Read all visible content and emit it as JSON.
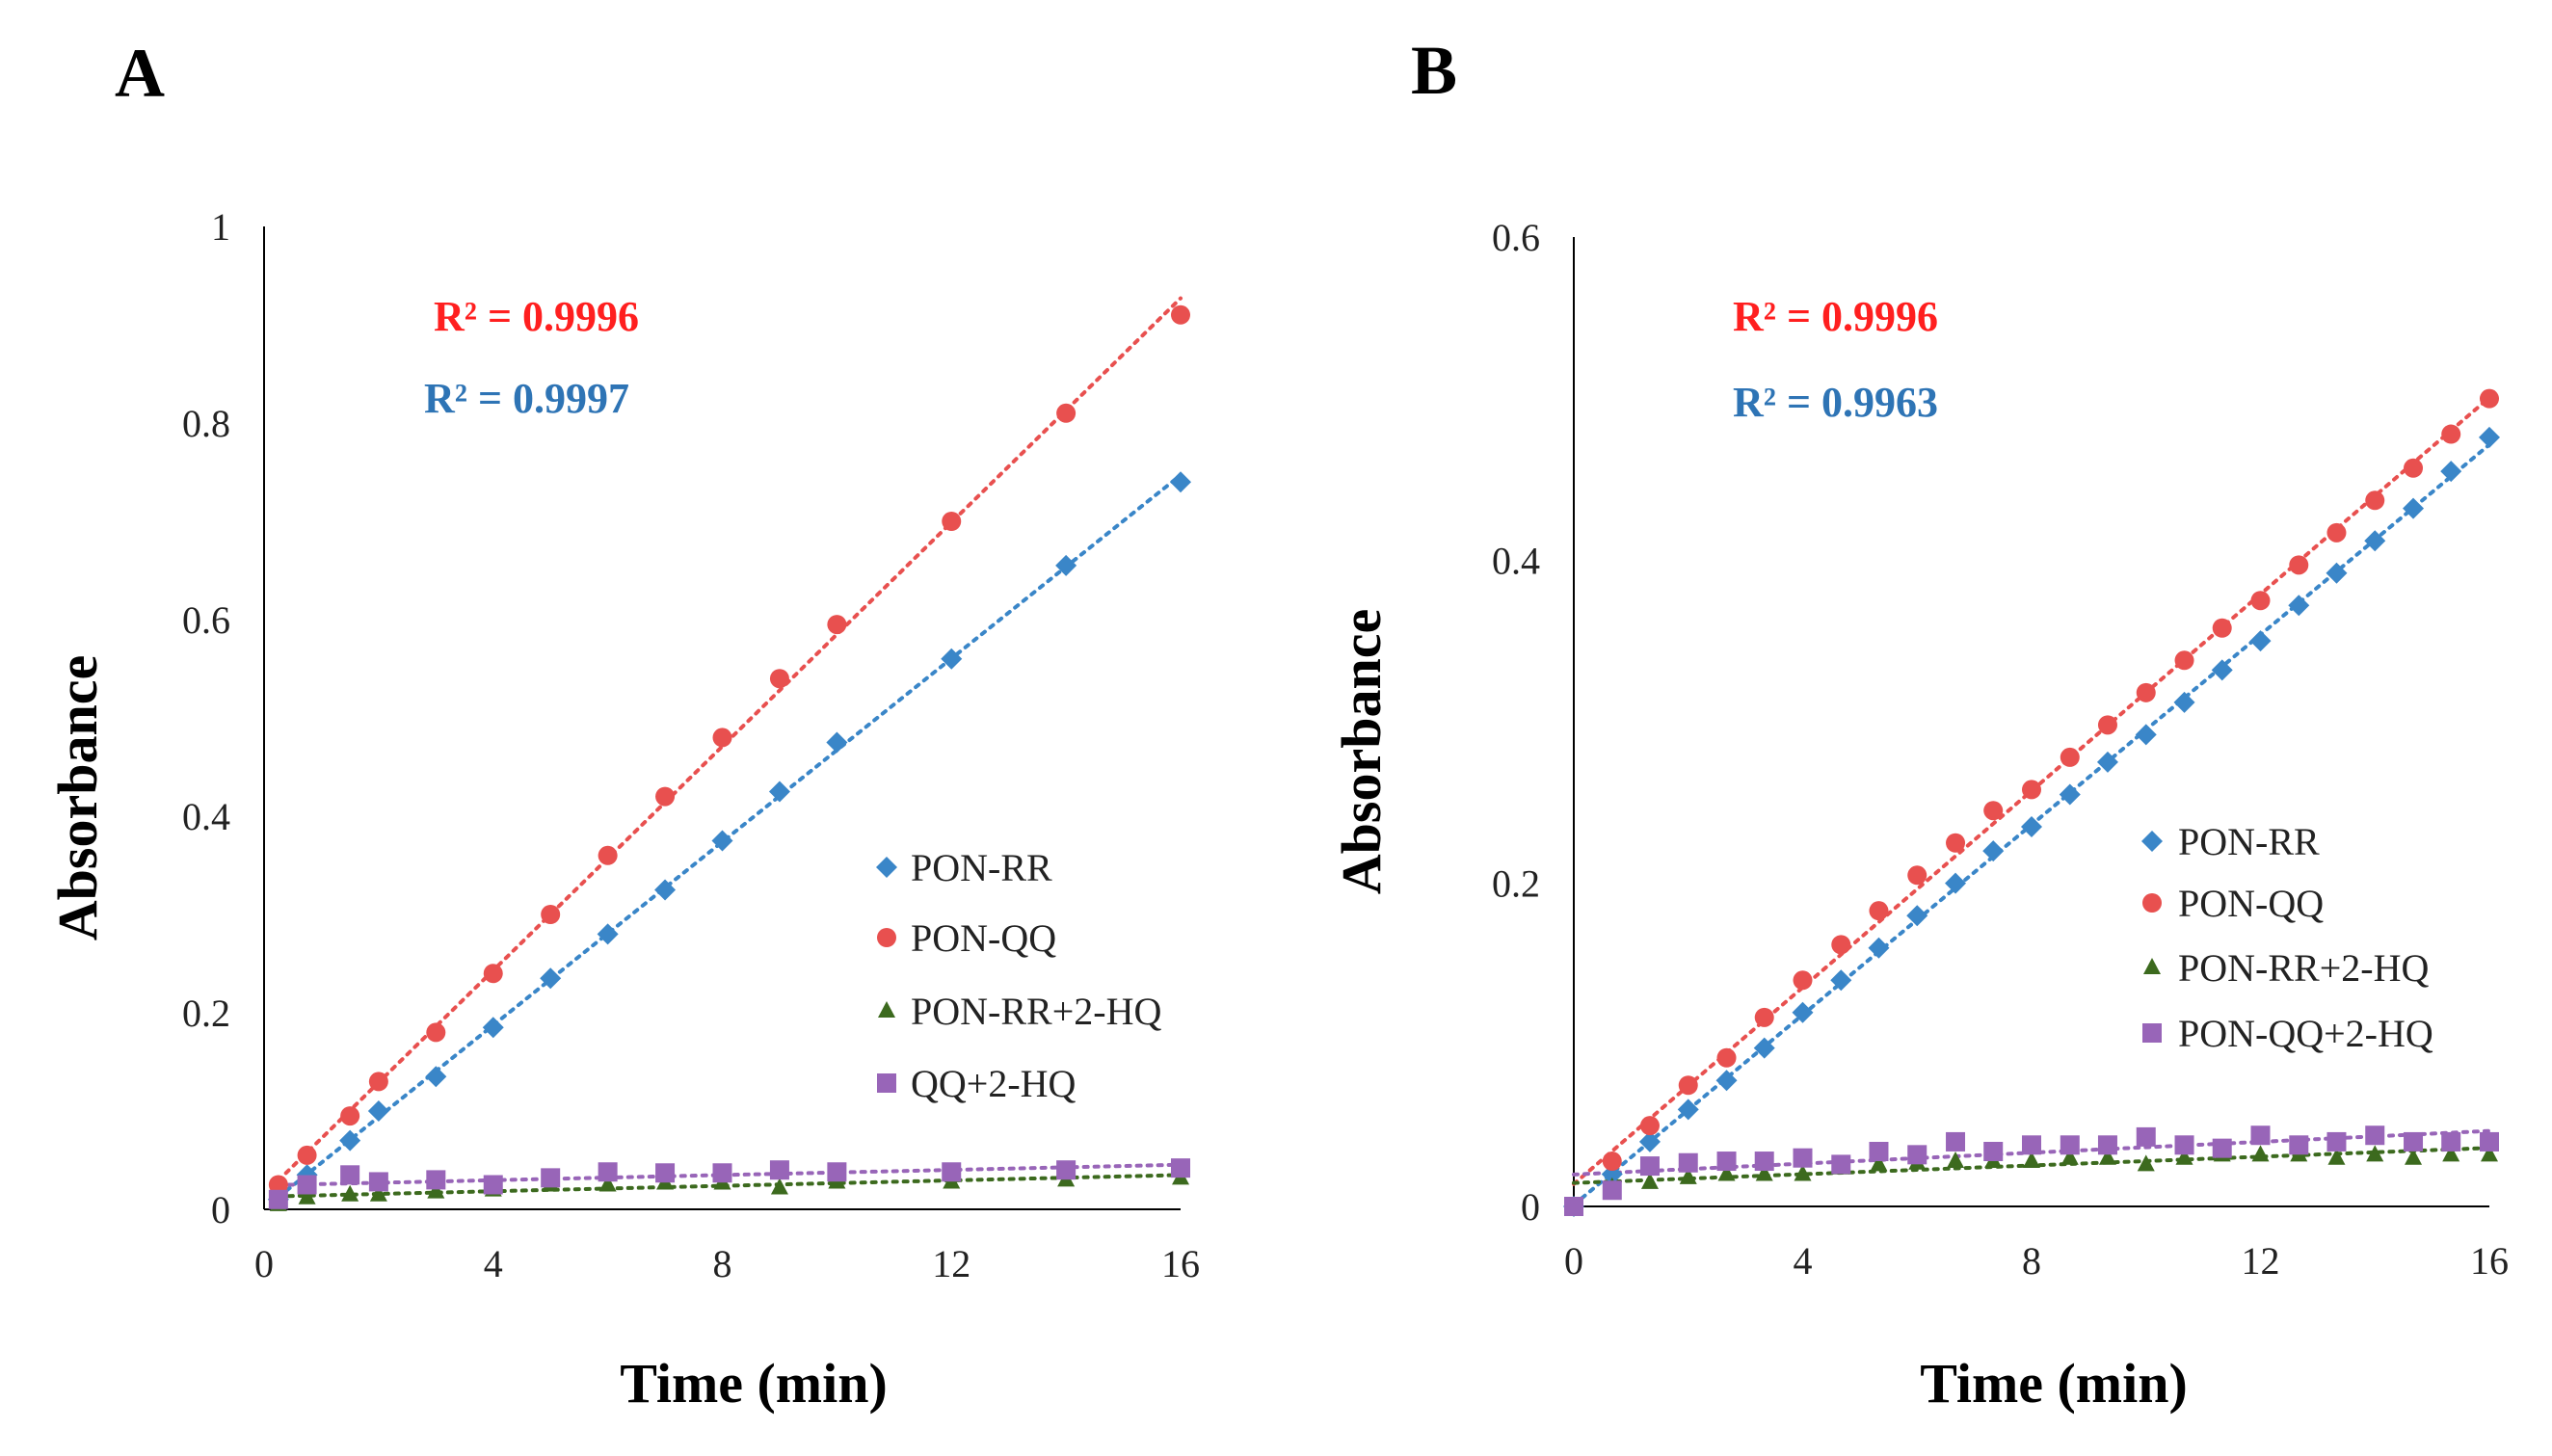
{
  "colors": {
    "blue": "#3a86c8",
    "red": "#e8504f",
    "green": "#3c6a1e",
    "purple": "#9865b8",
    "rblue": "#2e74b5",
    "rred": "#ff1f1f"
  },
  "chart_data": [
    {
      "panel_label": "A",
      "type": "scatter",
      "title": "",
      "xlabel": "Time (min)",
      "ylabel": "Absorbance",
      "xlim": [
        0,
        16
      ],
      "ylim": [
        0,
        1
      ],
      "xticks": [
        "0",
        "4",
        "8",
        "12",
        "16"
      ],
      "yticks": [
        "0",
        "0.2",
        "0.4",
        "0.6",
        "0.8",
        "1"
      ],
      "xtick_values": [
        0,
        4,
        8,
        12,
        16
      ],
      "ytick_values": [
        0,
        0.2,
        0.4,
        0.6,
        0.8,
        1
      ],
      "legend_position": "right-center",
      "r2_labels": [
        {
          "text": "R² = 0.9996",
          "color_key": "rred",
          "series": "PON-QQ"
        },
        {
          "text": "R² = 0.9997",
          "color_key": "rblue",
          "series": "PON-RR"
        }
      ],
      "series": [
        {
          "name": "PON-RR",
          "marker": "diamond",
          "color_key": "blue",
          "trendline": true,
          "x": [
            0.25,
            0.75,
            1.5,
            2,
            3,
            4,
            5,
            6,
            7,
            8,
            9,
            10,
            12,
            14,
            16
          ],
          "y": [
            0.01,
            0.035,
            0.07,
            0.1,
            0.135,
            0.185,
            0.235,
            0.28,
            0.325,
            0.375,
            0.425,
            0.475,
            0.56,
            0.655,
            0.74
          ]
        },
        {
          "name": "PON-QQ",
          "marker": "circle",
          "color_key": "red",
          "trendline": true,
          "x": [
            0.25,
            0.75,
            1.5,
            2,
            3,
            4,
            5,
            6,
            7,
            8,
            9,
            10,
            12,
            14,
            16
          ],
          "y": [
            0.025,
            0.055,
            0.095,
            0.13,
            0.18,
            0.24,
            0.3,
            0.36,
            0.42,
            0.48,
            0.54,
            0.595,
            0.7,
            0.81,
            0.91
          ]
        },
        {
          "name": "PON-RR+2-HQ",
          "marker": "triangle",
          "color_key": "green",
          "trendline": true,
          "x": [
            0.25,
            0.75,
            1.5,
            2,
            3,
            4,
            5,
            6,
            7,
            8,
            9,
            10,
            12,
            14,
            16
          ],
          "y": [
            0.005,
            0.012,
            0.015,
            0.015,
            0.018,
            0.02,
            0.025,
            0.025,
            0.027,
            0.027,
            0.022,
            0.028,
            0.028,
            0.03,
            0.032
          ]
        },
        {
          "name": "QQ+2-HQ",
          "marker": "square",
          "color_key": "purple",
          "trendline": true,
          "x": [
            0.25,
            0.75,
            1.5,
            2,
            3,
            4,
            5,
            6,
            7,
            8,
            9,
            10,
            12,
            14,
            16
          ],
          "y": [
            0.01,
            0.025,
            0.035,
            0.028,
            0.03,
            0.025,
            0.032,
            0.038,
            0.037,
            0.037,
            0.04,
            0.038,
            0.038,
            0.04,
            0.042
          ]
        }
      ]
    },
    {
      "panel_label": "B",
      "type": "scatter",
      "title": "",
      "xlabel": "Time (min)",
      "ylabel": "Absorbance",
      "xlim": [
        0,
        16
      ],
      "ylim": [
        0,
        0.6
      ],
      "xticks": [
        "0",
        "4",
        "8",
        "12",
        "16"
      ],
      "yticks": [
        "0",
        "0.2",
        "0.4",
        "0.6"
      ],
      "xtick_values": [
        0,
        4,
        8,
        12,
        16
      ],
      "ytick_values": [
        0,
        0.2,
        0.4,
        0.6
      ],
      "legend_position": "right-center",
      "r2_labels": [
        {
          "text": "R² = 0.9996",
          "color_key": "rred",
          "series": "PON-QQ"
        },
        {
          "text": "R² = 0.9963",
          "color_key": "rblue",
          "series": "PON-RR"
        }
      ],
      "series": [
        {
          "name": "PON-RR",
          "marker": "diamond",
          "color_key": "blue",
          "trendline": true,
          "x": [
            0,
            0.67,
            1.33,
            2,
            2.67,
            3.33,
            4,
            4.67,
            5.33,
            6,
            6.67,
            7.33,
            8,
            8.67,
            9.33,
            10,
            10.67,
            11.33,
            12,
            12.67,
            13.33,
            14,
            14.67,
            15.33,
            16
          ],
          "y": [
            0,
            0.02,
            0.04,
            0.06,
            0.078,
            0.098,
            0.12,
            0.14,
            0.16,
            0.18,
            0.2,
            0.22,
            0.235,
            0.255,
            0.275,
            0.292,
            0.312,
            0.332,
            0.35,
            0.372,
            0.392,
            0.412,
            0.432,
            0.455,
            0.476
          ]
        },
        {
          "name": "PON-QQ",
          "marker": "circle",
          "color_key": "red",
          "trendline": true,
          "x": [
            0,
            0.67,
            1.33,
            2,
            2.67,
            3.33,
            4,
            4.67,
            5.33,
            6,
            6.67,
            7.33,
            8,
            8.67,
            9.33,
            10,
            10.67,
            11.33,
            12,
            12.67,
            13.33,
            14,
            14.67,
            15.33,
            16
          ],
          "y": [
            0,
            0.028,
            0.05,
            0.075,
            0.092,
            0.117,
            0.14,
            0.162,
            0.183,
            0.205,
            0.225,
            0.245,
            0.258,
            0.278,
            0.298,
            0.318,
            0.338,
            0.358,
            0.375,
            0.397,
            0.417,
            0.437,
            0.457,
            0.478,
            0.5
          ]
        },
        {
          "name": "PON-RR+2-HQ",
          "marker": "triangle",
          "color_key": "green",
          "trendline": true,
          "x": [
            0,
            0.67,
            1.33,
            2,
            2.67,
            3.33,
            4,
            4.67,
            5.33,
            6,
            6.67,
            7.33,
            8,
            8.67,
            9.33,
            10,
            10.67,
            11.33,
            12,
            12.67,
            13.33,
            14,
            14.67,
            15.33,
            16
          ],
          "y": [
            0,
            0.012,
            0.015,
            0.018,
            0.02,
            0.02,
            0.02,
            0.024,
            0.026,
            0.027,
            0.028,
            0.028,
            0.028,
            0.03,
            0.03,
            0.026,
            0.03,
            0.032,
            0.032,
            0.032,
            0.03,
            0.032,
            0.03,
            0.032,
            0.032
          ]
        },
        {
          "name": "PON-QQ+2-HQ",
          "marker": "square",
          "color_key": "purple",
          "trendline": true,
          "x": [
            0,
            0.67,
            1.33,
            2,
            2.67,
            3.33,
            4,
            4.67,
            5.33,
            6,
            6.67,
            7.33,
            8,
            8.67,
            9.33,
            10,
            10.67,
            11.33,
            12,
            12.67,
            13.33,
            14,
            14.67,
            15.33,
            16
          ],
          "y": [
            0,
            0.01,
            0.025,
            0.027,
            0.028,
            0.028,
            0.03,
            0.026,
            0.034,
            0.032,
            0.04,
            0.034,
            0.038,
            0.038,
            0.038,
            0.043,
            0.038,
            0.036,
            0.044,
            0.038,
            0.04,
            0.044,
            0.04,
            0.04,
            0.04
          ]
        }
      ]
    }
  ]
}
